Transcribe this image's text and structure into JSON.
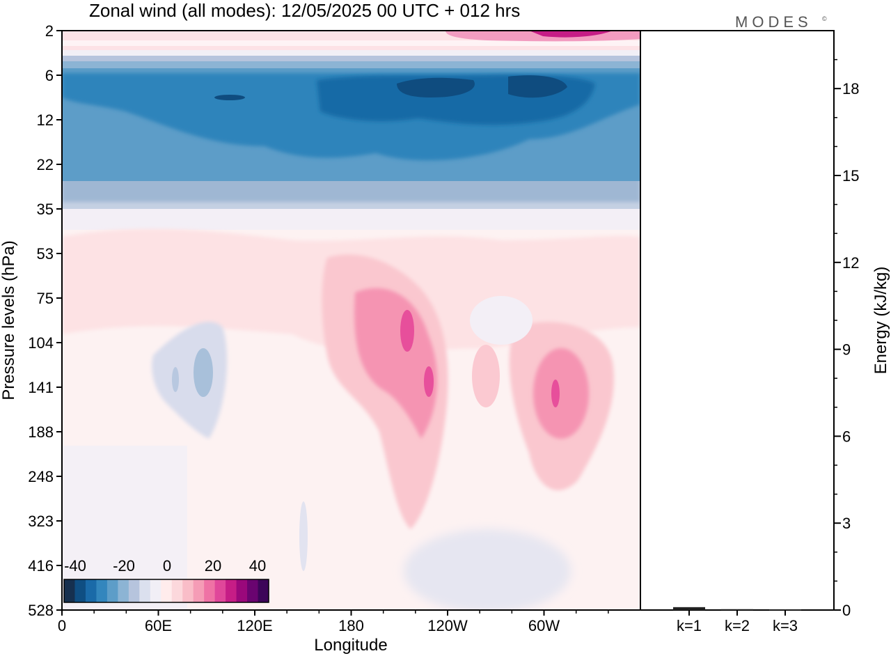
{
  "title": "Zonal wind (all modes):  12/05/2025  00 UTC  + 012 hrs",
  "brand": "MODES",
  "brand_mark": "©",
  "chart_data": [
    {
      "type": "heatmap",
      "title": "Zonal wind (all modes):  12/05/2025  00 UTC  + 012 hrs",
      "xlabel": "Longitude",
      "ylabel": "Pressure levels (hPa)",
      "x_ticks": [
        "0",
        "60E",
        "120E",
        "180",
        "120W",
        "60W"
      ],
      "x_tick_values": [
        0,
        60,
        120,
        180,
        240,
        300
      ],
      "xlim": [
        0,
        360
      ],
      "y_ticks": [
        "2",
        "6",
        "12",
        "22",
        "35",
        "53",
        "75",
        "104",
        "141",
        "188",
        "248",
        "323",
        "416",
        "528"
      ],
      "colorbar": {
        "tick_labels": [
          "-40",
          "-20",
          "0",
          "20",
          "40"
        ],
        "range": [
          -40,
          40
        ],
        "colors": [
          "#16304f",
          "#0f4e82",
          "#1a6aa8",
          "#3386bd",
          "#5d9dc8",
          "#8cb4d4",
          "#b6c4dd",
          "#dbe0ee",
          "#f1eff6",
          "#ffecec",
          "#fcd8dc",
          "#f9bdc8",
          "#f59cb6",
          "#ef72a5",
          "#e0479a",
          "#c61d86",
          "#9a087b",
          "#6a0470",
          "#3d0559"
        ]
      },
      "features": [
        {
          "desc": "strong negative band",
          "lon_range": [
            0,
            360
          ],
          "level_range": [
            "6",
            "22"
          ],
          "min": -40
        },
        {
          "desc": "strongest negative cores",
          "lon": [
            140,
            205,
            280
          ],
          "level": "8",
          "value": -38
        },
        {
          "desc": "positive top band",
          "level_range": [
            "2",
            "4"
          ],
          "max": 40
        },
        {
          "desc": "positive jet",
          "lon": 228,
          "level": "104",
          "value": 22
        },
        {
          "desc": "positive jet",
          "lon": 305,
          "level": "141",
          "value": 20
        },
        {
          "desc": "weak negative",
          "lon": 80,
          "level": "120",
          "value": -12
        }
      ]
    },
    {
      "type": "bar",
      "categories": [
        "k=1",
        "k=2",
        "k=3"
      ],
      "values": [
        0.1,
        0.03,
        0.02
      ],
      "ylabel": "Energy (kJ/kg)",
      "ylim": [
        0,
        20
      ],
      "y_ticks": [
        "0",
        "3",
        "6",
        "9",
        "12",
        "15",
        "18"
      ]
    }
  ]
}
